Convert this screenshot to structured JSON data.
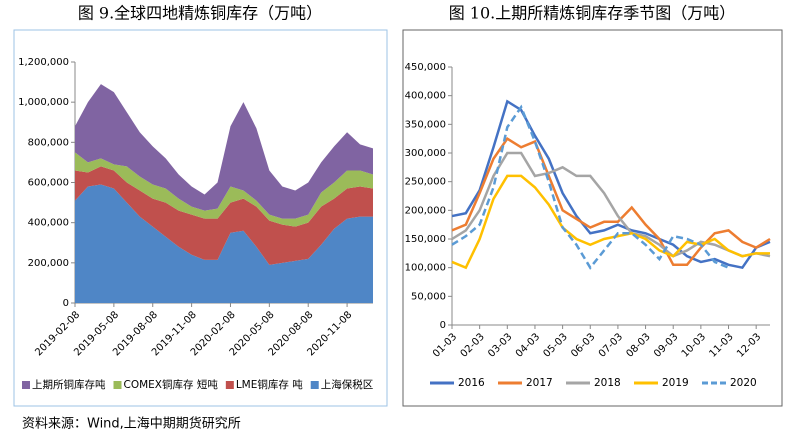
{
  "chart_data": [
    {
      "type": "stacked-area",
      "title": "图 9.全球四地精炼铜库存（万吨）",
      "categories": [
        "2019-02-08",
        null,
        null,
        "2019-05-08",
        null,
        null,
        "2019-08-08",
        null,
        null,
        "2019-11-08",
        null,
        null,
        "2020-02-08",
        null,
        null,
        "2020-05-08",
        null,
        null,
        "2020-08-08",
        null,
        null,
        "2020-11-08",
        null,
        null
      ],
      "series": [
        {
          "name": "上海保税区",
          "color": "#4f86c6",
          "values": [
            510000,
            580000,
            590000,
            570000,
            500000,
            430000,
            380000,
            330000,
            280000,
            240000,
            215000,
            215000,
            350000,
            360000,
            280000,
            190000,
            200000,
            210000,
            220000,
            290000,
            370000,
            420000,
            430000,
            430000
          ]
        },
        {
          "name": "LME铜库存 吨",
          "color": "#c0504d",
          "values": [
            150000,
            70000,
            90000,
            90000,
            100000,
            130000,
            140000,
            170000,
            180000,
            200000,
            205000,
            205000,
            150000,
            160000,
            200000,
            220000,
            190000,
            170000,
            180000,
            190000,
            150000,
            150000,
            150000,
            140000
          ]
        },
        {
          "name": "COMEX铜库存 短吨",
          "color": "#9bbb59",
          "values": [
            90000,
            50000,
            40000,
            30000,
            80000,
            70000,
            70000,
            70000,
            60000,
            40000,
            40000,
            50000,
            80000,
            40000,
            30000,
            30000,
            30000,
            40000,
            40000,
            70000,
            80000,
            90000,
            80000,
            70000
          ]
        },
        {
          "name": "上期所铜库存吨",
          "color": "#8064a2",
          "values": [
            130000,
            300000,
            370000,
            360000,
            270000,
            220000,
            190000,
            150000,
            120000,
            100000,
            80000,
            130000,
            300000,
            440000,
            360000,
            220000,
            160000,
            140000,
            160000,
            150000,
            180000,
            190000,
            130000,
            130000
          ]
        }
      ],
      "legend_order": [
        3,
        2,
        1,
        0
      ],
      "ylim": [
        0,
        1200000
      ],
      "yticks": [
        0,
        {
          "value": 200000,
          "label": "200,000"
        },
        {
          "value": 400000,
          "label": "400,000"
        },
        {
          "value": 600000,
          "label": "600,000"
        },
        {
          "value": 800000,
          "label": "800,000"
        },
        {
          "value": 1000000,
          "label": "1,000,000"
        },
        {
          "value": 1200000,
          "label": "1,200,000"
        }
      ]
    },
    {
      "type": "line",
      "title": "图 10.上期所精炼铜库存季节图（万吨）",
      "categories": [
        "01-03",
        null,
        "02-03",
        null,
        "03-03",
        null,
        "04-03",
        null,
        "05-03",
        null,
        "06-03",
        null,
        "07-03",
        null,
        "08-03",
        null,
        "09-03",
        null,
        "10-03",
        null,
        "11-03",
        null,
        "12-03",
        null
      ],
      "series": [
        {
          "name": "2016",
          "color": "#4472c4",
          "dashed": false,
          "values": [
            190000,
            195000,
            235000,
            310000,
            390000,
            375000,
            330000,
            290000,
            230000,
            190000,
            160000,
            165000,
            175000,
            165000,
            160000,
            150000,
            140000,
            120000,
            110000,
            115000,
            105000,
            100000,
            135000,
            145000
          ]
        },
        {
          "name": "2017",
          "color": "#ed7d31",
          "dashed": false,
          "values": [
            165000,
            175000,
            230000,
            290000,
            325000,
            310000,
            320000,
            260000,
            200000,
            185000,
            170000,
            180000,
            180000,
            205000,
            175000,
            150000,
            105000,
            105000,
            135000,
            160000,
            165000,
            145000,
            135000,
            150000
          ]
        },
        {
          "name": "2018",
          "color": "#a5a5a5",
          "dashed": false,
          "values": [
            150000,
            165000,
            200000,
            260000,
            300000,
            300000,
            260000,
            265000,
            275000,
            260000,
            260000,
            230000,
            190000,
            160000,
            155000,
            140000,
            120000,
            130000,
            145000,
            140000,
            130000,
            120000,
            125000,
            120000
          ]
        },
        {
          "name": "2019",
          "color": "#ffc000",
          "dashed": false,
          "values": [
            110000,
            100000,
            150000,
            220000,
            260000,
            260000,
            240000,
            210000,
            170000,
            150000,
            140000,
            150000,
            155000,
            160000,
            150000,
            130000,
            120000,
            145000,
            140000,
            150000,
            130000,
            120000,
            125000,
            125000
          ]
        },
        {
          "name": "2020",
          "color": "#5b9bd5",
          "dashed": true,
          "values": [
            140000,
            155000,
            175000,
            240000,
            345000,
            380000,
            320000,
            250000,
            170000,
            140000,
            100000,
            130000,
            160000,
            160000,
            140000,
            115000,
            155000,
            150000,
            140000,
            110000,
            100000,
            null,
            null,
            null
          ]
        }
      ],
      "ylim": [
        0,
        450000
      ],
      "yticks": [
        0,
        {
          "value": 50000,
          "label": "50,000"
        },
        {
          "value": 100000,
          "label": "100,000"
        },
        {
          "value": 150000,
          "label": "150,000"
        },
        {
          "value": 200000,
          "label": "200,000"
        },
        {
          "value": 250000,
          "label": "250,000"
        },
        {
          "value": 300000,
          "label": "300,000"
        },
        {
          "value": 350000,
          "label": "350,000"
        },
        {
          "value": 400000,
          "label": "400,000"
        },
        {
          "value": 450000,
          "label": "450,000"
        }
      ]
    }
  ],
  "source": "资料来源：Wind,上海中期期货研究所"
}
